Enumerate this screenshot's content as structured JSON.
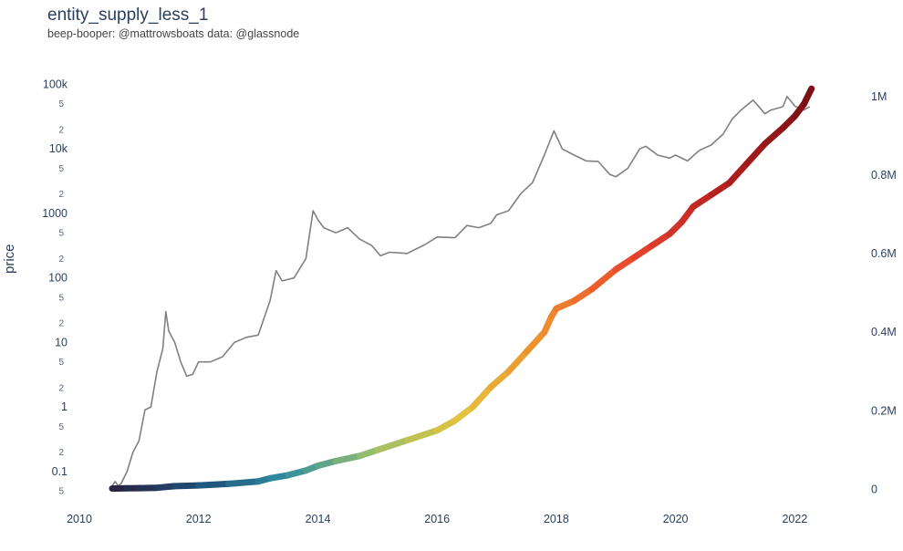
{
  "chart_data": {
    "type": "line",
    "title": "entity_supply_less_1",
    "subtitle": "beep-booper: @mattrowsboats data: @glassnode",
    "ylabel": "price",
    "xlabel": "",
    "x_ticks": [
      "2010",
      "2012",
      "2014",
      "2016",
      "2018",
      "2020",
      "2022"
    ],
    "xlim": [
      2010,
      2023.05
    ],
    "y_left": {
      "scale": "log",
      "lim": [
        0.04,
        150000
      ],
      "major_ticks": [
        {
          "value": 0.1,
          "label": "0.1"
        },
        {
          "value": 1,
          "label": "1"
        },
        {
          "value": 10,
          "label": "10"
        },
        {
          "value": 100,
          "label": "100"
        },
        {
          "value": 1000,
          "label": "1000"
        },
        {
          "value": 10000,
          "label": "10k"
        },
        {
          "value": 100000,
          "label": "100k"
        }
      ],
      "minor_ticks": [
        {
          "value": 0.05,
          "label": "5"
        },
        {
          "value": 0.2,
          "label": "2"
        },
        {
          "value": 0.5,
          "label": "5"
        },
        {
          "value": 2,
          "label": "2"
        },
        {
          "value": 5,
          "label": "5"
        },
        {
          "value": 20,
          "label": "2"
        },
        {
          "value": 50,
          "label": "5"
        },
        {
          "value": 200,
          "label": "2"
        },
        {
          "value": 500,
          "label": "5"
        },
        {
          "value": 2000,
          "label": "2"
        },
        {
          "value": 5000,
          "label": "5"
        },
        {
          "value": 20000,
          "label": "2"
        },
        {
          "value": 50000,
          "label": "5"
        }
      ]
    },
    "y_right": {
      "scale": "linear",
      "lim": [
        -20000,
        1060000
      ],
      "ticks": [
        {
          "value": 0,
          "label": "0"
        },
        {
          "value": 200000,
          "label": "0.2M"
        },
        {
          "value": 400000,
          "label": "0.4M"
        },
        {
          "value": 600000,
          "label": "0.6M"
        },
        {
          "value": 800000,
          "label": "0.8M"
        },
        {
          "value": 1000000,
          "label": "1M"
        }
      ]
    },
    "grid": false,
    "legend": "none",
    "series": [
      {
        "axis": "left",
        "color": "#808080",
        "x": [
          2010.55,
          2010.6,
          2010.65,
          2010.7,
          2010.8,
          2010.9,
          2011.0,
          2011.1,
          2011.2,
          2011.3,
          2011.4,
          2011.45,
          2011.5,
          2011.6,
          2011.7,
          2011.8,
          2011.9,
          2012.0,
          2012.2,
          2012.4,
          2012.6,
          2012.8,
          2013.0,
          2013.2,
          2013.3,
          2013.4,
          2013.6,
          2013.8,
          2013.92,
          2014.0,
          2014.1,
          2014.3,
          2014.5,
          2014.7,
          2014.9,
          2015.05,
          2015.2,
          2015.5,
          2015.8,
          2016.0,
          2016.3,
          2016.5,
          2016.7,
          2016.9,
          2017.0,
          2017.2,
          2017.4,
          2017.6,
          2017.8,
          2017.96,
          2018.1,
          2018.3,
          2018.5,
          2018.7,
          2018.9,
          2019.0,
          2019.2,
          2019.4,
          2019.5,
          2019.7,
          2019.9,
          2020.0,
          2020.2,
          2020.4,
          2020.6,
          2020.8,
          2020.95,
          2021.1,
          2021.3,
          2021.5,
          2021.6,
          2021.8,
          2021.87,
          2022.0,
          2022.15,
          2022.25
        ],
        "y": [
          0.06,
          0.07,
          0.06,
          0.065,
          0.1,
          0.2,
          0.3,
          0.9,
          1.0,
          3.5,
          8,
          30,
          15,
          10,
          5,
          3,
          3.2,
          5,
          5,
          6,
          10,
          12,
          13,
          45,
          130,
          90,
          100,
          200,
          1100,
          800,
          600,
          500,
          600,
          400,
          320,
          220,
          250,
          240,
          330,
          430,
          420,
          650,
          600,
          700,
          950,
          1100,
          2000,
          3000,
          8000,
          19000,
          10000,
          8000,
          6500,
          6400,
          4000,
          3700,
          5000,
          10000,
          11000,
          8000,
          7200,
          8000,
          6500,
          9500,
          11500,
          17000,
          29000,
          40000,
          57000,
          35000,
          40000,
          45000,
          65000,
          46000,
          40000,
          45000
        ]
      },
      {
        "axis": "right",
        "colorscale": [
          "#2a1f3d",
          "#1f4e79",
          "#2e8ea0",
          "#9bbf6a",
          "#e3c43d",
          "#ee8a2e",
          "#e8442e",
          "#b41f1e",
          "#7a0f15"
        ],
        "x": [
          2010.55,
          2010.8,
          2011.0,
          2011.3,
          2011.6,
          2012.0,
          2012.5,
          2013.0,
          2013.2,
          2013.5,
          2013.8,
          2014.0,
          2014.3,
          2014.7,
          2015.0,
          2015.5,
          2016.0,
          2016.3,
          2016.6,
          2016.9,
          2017.2,
          2017.5,
          2017.8,
          2017.92,
          2018.0,
          2018.3,
          2018.6,
          2019.0,
          2019.3,
          2019.6,
          2019.9,
          2020.1,
          2020.3,
          2020.6,
          2020.9,
          2021.2,
          2021.5,
          2021.8,
          2022.0,
          2022.15,
          2022.28
        ],
        "y": [
          2000,
          2500,
          3000,
          4000,
          8000,
          10000,
          14000,
          20000,
          28000,
          36000,
          48000,
          60000,
          72000,
          85000,
          100000,
          125000,
          150000,
          175000,
          210000,
          260000,
          300000,
          350000,
          400000,
          440000,
          460000,
          480000,
          510000,
          560000,
          590000,
          620000,
          650000,
          680000,
          720000,
          750000,
          780000,
          830000,
          880000,
          920000,
          950000,
          980000,
          1020000
        ]
      }
    ]
  }
}
